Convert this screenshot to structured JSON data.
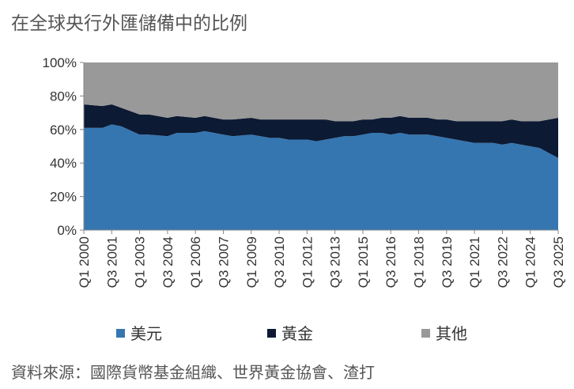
{
  "title": "在全球央行外匯儲備中的比例",
  "source": "資料來源：國際貨幣基金組織、世界黃金協會、渣打",
  "chart_data": {
    "type": "area",
    "stacked": true,
    "ylim": [
      0,
      100
    ],
    "yticks": [
      "0%",
      "20%",
      "40%",
      "60%",
      "80%",
      "100%"
    ],
    "ytick_values": [
      0,
      20,
      40,
      60,
      80,
      100
    ],
    "xticks": [
      "Q1 2000",
      "Q3 2001",
      "Q1 2003",
      "Q3 2004",
      "Q1 2006",
      "Q3 2007",
      "Q1 2009",
      "Q3 2010",
      "Q1 2012",
      "Q3 2013",
      "Q1 2015",
      "Q3 2016",
      "Q1 2018",
      "Q3 2019",
      "Q1 2021",
      "Q3 2022",
      "Q1 2024",
      "Q3 2025"
    ],
    "x": [
      "Q1 2000",
      "Q1 2001",
      "Q3 2001",
      "Q1 2002",
      "Q1 2003",
      "Q3 2003",
      "Q3 2004",
      "Q1 2005",
      "Q1 2006",
      "Q3 2006",
      "Q1 2007",
      "Q3 2007",
      "Q1 2008",
      "Q1 2009",
      "Q3 2009",
      "Q1 2010",
      "Q3 2010",
      "Q1 2011",
      "Q3 2011",
      "Q1 2012",
      "Q3 2012",
      "Q1 2013",
      "Q3 2013",
      "Q1 2014",
      "Q3 2014",
      "Q1 2015",
      "Q3 2015",
      "Q1 2016",
      "Q3 2016",
      "Q1 2017",
      "Q3 2017",
      "Q1 2018",
      "Q3 2018",
      "Q1 2019",
      "Q3 2019",
      "Q1 2020",
      "Q3 2020",
      "Q1 2021",
      "Q3 2021",
      "Q1 2022",
      "Q3 2022",
      "Q1 2023",
      "Q3 2023",
      "Q1 2024",
      "Q3 2024",
      "Q1 2025",
      "Q3 2025"
    ],
    "series": [
      {
        "name": "美元",
        "color": "#3576b1",
        "values": [
          61,
          61,
          63,
          62,
          57,
          57,
          56,
          58,
          58,
          59,
          58,
          57,
          56,
          57,
          56,
          55,
          55,
          54,
          54,
          54,
          53,
          54,
          55,
          56,
          56,
          57,
          58,
          58,
          57,
          58,
          57,
          57,
          57,
          56,
          55,
          54,
          53,
          52,
          52,
          52,
          51,
          52,
          51,
          50,
          49,
          46,
          43
        ]
      },
      {
        "name": "黃金",
        "color": "#0c1a33",
        "values": [
          14,
          13,
          12,
          11,
          12,
          12,
          11,
          10,
          9,
          9,
          9,
          9,
          10,
          10,
          10,
          11,
          11,
          12,
          12,
          12,
          13,
          12,
          10,
          9,
          9,
          9,
          8,
          9,
          10,
          10,
          10,
          10,
          10,
          10,
          11,
          11,
          12,
          13,
          13,
          13,
          14,
          14,
          14,
          15,
          16,
          20,
          24
        ]
      },
      {
        "name": "其他",
        "color": "#999999",
        "values": [
          25,
          26,
          25,
          27,
          31,
          31,
          33,
          32,
          33,
          32,
          33,
          34,
          34,
          33,
          34,
          34,
          34,
          34,
          34,
          34,
          34,
          34,
          35,
          35,
          35,
          34,
          34,
          33,
          33,
          32,
          33,
          33,
          33,
          34,
          34,
          35,
          35,
          35,
          35,
          35,
          35,
          34,
          35,
          35,
          35,
          34,
          33
        ]
      }
    ]
  }
}
